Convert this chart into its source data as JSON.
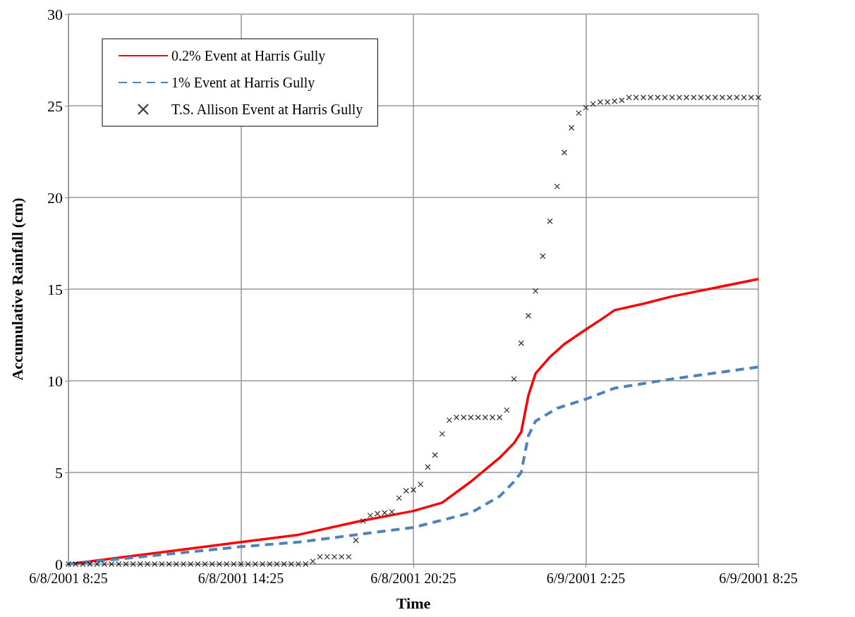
{
  "chart_data": {
    "type": "line",
    "xlabel": "Time",
    "ylabel": "Accumulative Rainfall (cm)",
    "xlim": [
      "2001-06-08T08:25",
      "2001-06-09T08:25"
    ],
    "xticks": [
      {
        "value": "2001-06-08T08:25",
        "label": "6/8/2001 8:25"
      },
      {
        "value": "2001-06-08T14:25",
        "label": "6/8/2001 14:25"
      },
      {
        "value": "2001-06-08T20:25",
        "label": "6/8/2001 20:25"
      },
      {
        "value": "2001-06-09T02:25",
        "label": "6/9/2001 2:25"
      },
      {
        "value": "2001-06-09T08:25",
        "label": "6/9/2001 8:25"
      }
    ],
    "ylim": [
      0,
      30
    ],
    "yticks": [
      0,
      5,
      10,
      15,
      20,
      25,
      30
    ],
    "grid": true,
    "legend": "top left",
    "series": [
      {
        "name": "0.2% Event at Harris Gully",
        "color": "#ff0000",
        "marker": "none",
        "line_style": "solid",
        "x": [
          "2001-06-08T08:25",
          "2001-06-08T14:25",
          "2001-06-08T16:25",
          "2001-06-08T18:25",
          "2001-06-08T20:25",
          "2001-06-08T21:25",
          "2001-06-08T22:25",
          "2001-06-08T23:25",
          "2001-06-08T23:55",
          "2001-06-09T00:10",
          "2001-06-09T00:25",
          "2001-06-09T00:40",
          "2001-06-09T01:10",
          "2001-06-09T01:40",
          "2001-06-09T02:25",
          "2001-06-09T03:00",
          "2001-06-09T03:25",
          "2001-06-09T04:25",
          "2001-06-09T05:25",
          "2001-06-09T08:25"
        ],
        "values": [
          0,
          1.2,
          1.6,
          2.3,
          2.9,
          3.35,
          4.5,
          5.8,
          6.6,
          7.2,
          9.2,
          10.4,
          11.3,
          12.0,
          12.8,
          13.4,
          13.85,
          14.2,
          14.6,
          15.55
        ]
      },
      {
        "name": "1% Event at Harris Gully",
        "color": "#4f81bd",
        "marker": "none",
        "line_style": "dashed",
        "x": [
          "2001-06-08T08:25",
          "2001-06-08T14:25",
          "2001-06-08T16:25",
          "2001-06-08T18:25",
          "2001-06-08T20:25",
          "2001-06-08T22:25",
          "2001-06-08T23:25",
          "2001-06-08T23:55",
          "2001-06-09T00:10",
          "2001-06-09T00:25",
          "2001-06-09T00:40",
          "2001-06-09T01:25",
          "2001-06-09T02:25",
          "2001-06-09T03:25",
          "2001-06-09T05:25",
          "2001-06-09T08:25"
        ],
        "values": [
          0,
          0.95,
          1.2,
          1.6,
          2.0,
          2.8,
          3.7,
          4.5,
          5.0,
          7.0,
          7.8,
          8.5,
          9.0,
          9.6,
          10.1,
          10.75
        ]
      },
      {
        "name": "T.S. Allison Event at Harris Gully",
        "type": "scatter",
        "color": "#000000",
        "marker": "cross",
        "x": [
          "2001-06-08T08:25",
          "2001-06-08T08:40",
          "2001-06-08T08:55",
          "2001-06-08T09:10",
          "2001-06-08T09:25",
          "2001-06-08T09:40",
          "2001-06-08T09:55",
          "2001-06-08T10:10",
          "2001-06-08T10:25",
          "2001-06-08T10:40",
          "2001-06-08T10:55",
          "2001-06-08T11:10",
          "2001-06-08T11:25",
          "2001-06-08T11:40",
          "2001-06-08T11:55",
          "2001-06-08T12:10",
          "2001-06-08T12:25",
          "2001-06-08T12:40",
          "2001-06-08T12:55",
          "2001-06-08T13:10",
          "2001-06-08T13:25",
          "2001-06-08T13:40",
          "2001-06-08T13:55",
          "2001-06-08T14:10",
          "2001-06-08T14:25",
          "2001-06-08T14:40",
          "2001-06-08T14:55",
          "2001-06-08T15:10",
          "2001-06-08T15:25",
          "2001-06-08T15:40",
          "2001-06-08T15:55",
          "2001-06-08T16:10",
          "2001-06-08T16:25",
          "2001-06-08T16:40",
          "2001-06-08T16:55",
          "2001-06-08T17:10",
          "2001-06-08T17:25",
          "2001-06-08T17:40",
          "2001-06-08T17:55",
          "2001-06-08T18:10",
          "2001-06-08T18:25",
          "2001-06-08T18:40",
          "2001-06-08T18:55",
          "2001-06-08T19:10",
          "2001-06-08T19:25",
          "2001-06-08T19:40",
          "2001-06-08T19:55",
          "2001-06-08T20:10",
          "2001-06-08T20:25",
          "2001-06-08T20:40",
          "2001-06-08T20:55",
          "2001-06-08T21:10",
          "2001-06-08T21:25",
          "2001-06-08T21:40",
          "2001-06-08T21:55",
          "2001-06-08T22:10",
          "2001-06-08T22:25",
          "2001-06-08T22:40",
          "2001-06-08T22:55",
          "2001-06-08T23:10",
          "2001-06-08T23:25",
          "2001-06-08T23:40",
          "2001-06-08T23:55",
          "2001-06-09T00:10",
          "2001-06-09T00:25",
          "2001-06-09T00:40",
          "2001-06-09T00:55",
          "2001-06-09T01:10",
          "2001-06-09T01:25",
          "2001-06-09T01:40",
          "2001-06-09T01:55",
          "2001-06-09T02:10",
          "2001-06-09T02:25",
          "2001-06-09T02:40",
          "2001-06-09T02:55",
          "2001-06-09T03:10",
          "2001-06-09T03:25",
          "2001-06-09T03:40",
          "2001-06-09T03:55",
          "2001-06-09T04:10",
          "2001-06-09T04:25",
          "2001-06-09T04:40",
          "2001-06-09T04:55",
          "2001-06-09T05:10",
          "2001-06-09T05:25",
          "2001-06-09T05:40",
          "2001-06-09T05:55",
          "2001-06-09T06:10",
          "2001-06-09T06:25",
          "2001-06-09T06:40",
          "2001-06-09T06:55",
          "2001-06-09T07:10",
          "2001-06-09T07:25",
          "2001-06-09T07:40",
          "2001-06-09T07:55",
          "2001-06-09T08:10",
          "2001-06-09T08:25"
        ],
        "values": [
          0,
          0,
          0,
          0,
          0,
          0,
          0,
          0,
          0,
          0,
          0,
          0,
          0,
          0,
          0,
          0,
          0,
          0,
          0,
          0,
          0,
          0,
          0,
          0,
          0,
          0,
          0,
          0,
          0,
          0,
          0,
          0,
          0,
          0,
          0.15,
          0.4,
          0.4,
          0.4,
          0.4,
          0.4,
          1.3,
          2.35,
          2.65,
          2.75,
          2.8,
          2.85,
          3.6,
          4.0,
          4.05,
          4.35,
          5.3,
          5.95,
          7.1,
          7.85,
          8.0,
          8.0,
          8.0,
          8.0,
          8.0,
          8.0,
          8.0,
          8.4,
          10.1,
          12.05,
          13.55,
          14.9,
          16.8,
          18.7,
          20.6,
          22.45,
          23.8,
          24.6,
          24.9,
          25.1,
          25.2,
          25.2,
          25.25,
          25.3,
          25.45,
          25.45,
          25.45,
          25.45,
          25.45,
          25.45,
          25.45,
          25.45,
          25.45,
          25.45,
          25.45,
          25.45,
          25.45,
          25.45,
          25.45,
          25.45,
          25.45,
          25.45,
          25.45
        ]
      }
    ]
  }
}
